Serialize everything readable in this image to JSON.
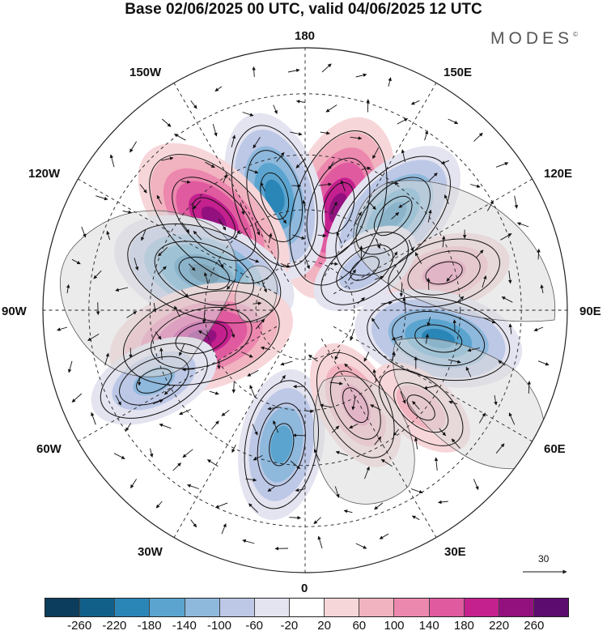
{
  "header": {
    "title": "Base 02/06/2025 00 UTC, valid 04/06/2025 12 UTC",
    "brand": "MODES",
    "brand_mark": "©"
  },
  "map": {
    "projection": "north-polar-stereographic",
    "longitude_labels": {
      "top": "180",
      "bottom": "0",
      "left": "90W",
      "right": "90E",
      "upper_left_1": "150W",
      "upper_left_2": "120W",
      "upper_right_1": "150E",
      "upper_right_2": "120E",
      "lower_left_1": "60W",
      "lower_left_2": "30W",
      "lower_right_1": "60E",
      "lower_right_2": "30E"
    },
    "colors": {
      "land_fill": "#dadada",
      "coast": "#555555",
      "grid": "#222222",
      "arrow": "#111111"
    },
    "anomaly_centers": [
      {
        "lon": 162,
        "lat": 58,
        "value": 240,
        "label": "positive"
      },
      {
        "lon": -165,
        "lat": 55,
        "value": -200,
        "label": "negative"
      },
      {
        "lon": -135,
        "lat": 52,
        "value": 220,
        "label": "positive"
      },
      {
        "lon": 137,
        "lat": 52,
        "value": -200,
        "label": "negative"
      },
      {
        "lon": -110,
        "lat": 58,
        "value": -220,
        "label": "negative"
      },
      {
        "lon": -75,
        "lat": 58,
        "value": 240,
        "label": "positive"
      },
      {
        "lon": 105,
        "lat": 48,
        "value": 120,
        "label": "positive"
      },
      {
        "lon": 78,
        "lat": 50,
        "value": -180,
        "label": "negative"
      },
      {
        "lon": -10,
        "lat": 50,
        "value": -160,
        "label": "negative"
      },
      {
        "lon": 28,
        "lat": 58,
        "value": 100,
        "label": "positive"
      },
      {
        "lon": -65,
        "lat": 42,
        "value": -120,
        "label": "negative"
      },
      {
        "lon": 50,
        "lat": 46,
        "value": 80,
        "label": "positive"
      },
      {
        "lon": 125,
        "lat": 68,
        "value": -60,
        "label": "negative"
      }
    ]
  },
  "scale_arrow": {
    "value": "30"
  },
  "colorbar": {
    "colors": [
      "#0d3d5c",
      "#11608a",
      "#2b86b8",
      "#5aa4cf",
      "#8eb8dc",
      "#bcc8e6",
      "#e4e3f0",
      "#ffffff",
      "#f7d6d9",
      "#f1b3bf",
      "#ec87ae",
      "#e05a9f",
      "#c4208e",
      "#93117f",
      "#5c0c6e"
    ],
    "tick_labels": [
      "-260",
      "-220",
      "-180",
      "-140",
      "-100",
      "-60",
      "-20",
      "20",
      "60",
      "100",
      "140",
      "180",
      "220",
      "260"
    ]
  }
}
